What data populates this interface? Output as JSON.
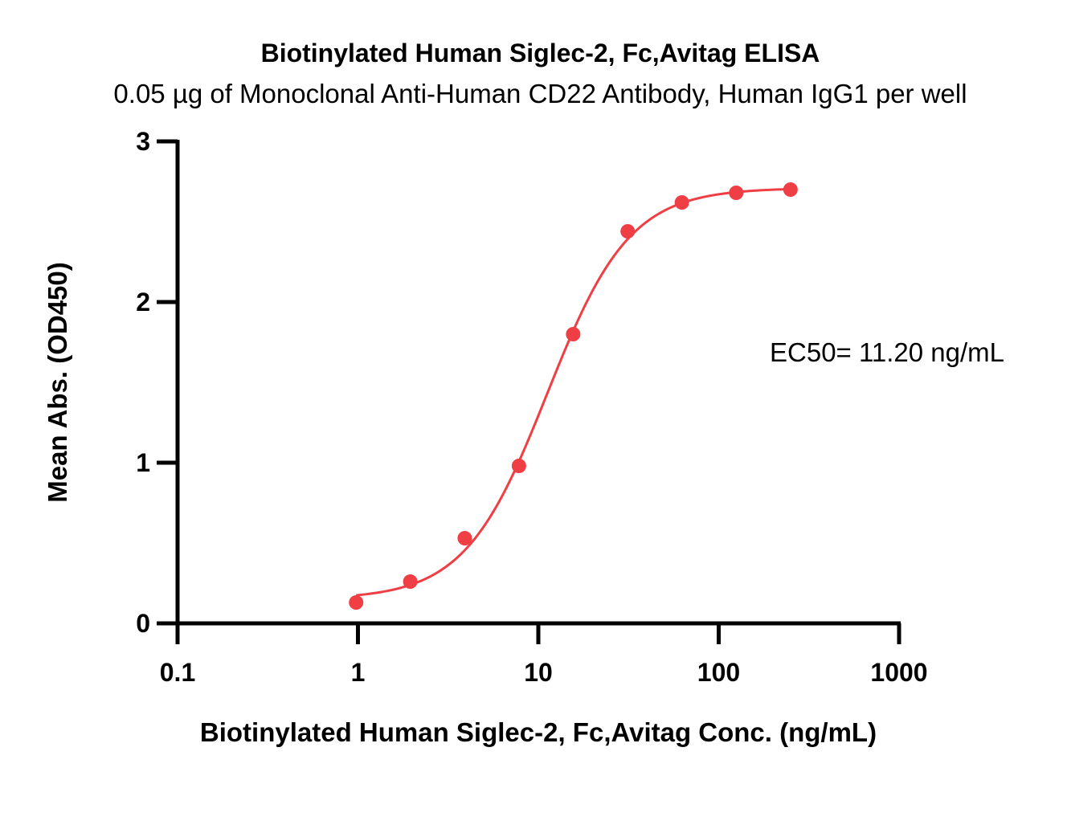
{
  "chart_data": {
    "type": "scatter",
    "title": "Biotinylated Human Siglec-2, Fc,Avitag ELISA",
    "subtitle": "0.05 µg of Monoclonal Anti-Human CD22 Antibody, Human IgG1 per well",
    "xlabel": "Biotinylated Human Siglec-2, Fc,Avitag Conc. (ng/mL)",
    "ylabel": "Mean Abs. (OD450)",
    "x_scale": "log",
    "xlim": [
      0.1,
      1000
    ],
    "ylim": [
      0,
      3
    ],
    "x_ticks": [
      "0.1",
      "1",
      "10",
      "100",
      "1000"
    ],
    "y_ticks": [
      "0",
      "1",
      "2",
      "3"
    ],
    "grid": false,
    "series": [
      {
        "color": "#ef3e44",
        "x": [
          0.977,
          1.95,
          3.91,
          7.81,
          15.6,
          31.3,
          62.5,
          125,
          250
        ],
        "y": [
          0.13,
          0.26,
          0.53,
          0.98,
          1.8,
          2.44,
          2.62,
          2.68,
          2.7
        ]
      }
    ],
    "fit_curve": {
      "model": "4PL",
      "bottom": 0.15,
      "top": 2.71,
      "ec50": 11.2,
      "hill": 1.9,
      "color": "#ef3e44"
    },
    "annotation": "EC50= 11.20 ng/mL"
  }
}
